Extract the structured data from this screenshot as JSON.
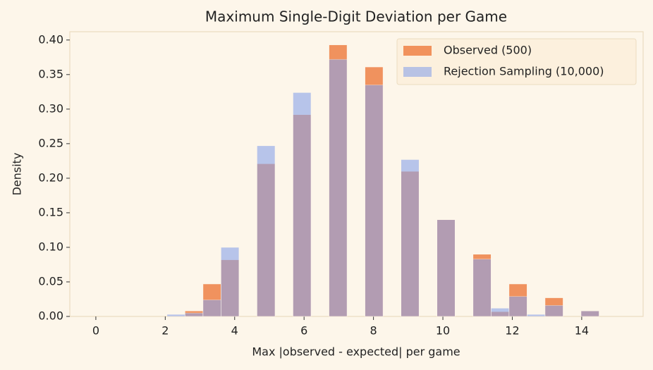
{
  "chart_data": {
    "type": "histogram",
    "title": "Maximum Single-Digit Deviation per Game",
    "x_label": "Max |observed - expected| per game",
    "y_label": "Density",
    "bins": [
      2.05,
      2.569,
      3.088,
      3.606,
      4.125,
      4.644,
      5.163,
      5.681,
      6.2,
      6.719,
      7.238,
      7.756,
      8.275,
      8.794,
      9.313,
      9.831,
      10.35,
      10.869,
      11.388,
      11.906,
      12.425,
      12.944,
      13.463,
      13.981,
      14.5
    ],
    "series": [
      {
        "name": "Observed (500)",
        "color": "#ee7a3c",
        "values": [
          0,
          0.008,
          0.047,
          0.082,
          0,
          0.221,
          0,
          0.292,
          0,
          0.393,
          0,
          0.361,
          0,
          0.21,
          0,
          0.14,
          0,
          0.09,
          0.007,
          0.047,
          0,
          0.027,
          0,
          0.008
        ]
      },
      {
        "name": "Rejection Sampling (10,000)",
        "color": "#8aa3ea",
        "values": [
          0.003,
          0.005,
          0.024,
          0.1,
          0,
          0.247,
          0,
          0.324,
          0,
          0.372,
          0,
          0.335,
          0,
          0.227,
          0,
          0.14,
          0,
          0.083,
          0.012,
          0.029,
          0.003,
          0.016,
          0,
          0.008
        ]
      }
    ],
    "xlim": [
      -0.75,
      15.77
    ],
    "ylim": [
      0,
      0.412
    ],
    "xticks": [
      0,
      2,
      4,
      6,
      8,
      10,
      12,
      14
    ],
    "yticks": [
      {
        "value": 0,
        "label": "0.00"
      },
      0.05,
      {
        "value": 0.1,
        "label": "0.10"
      },
      0.15,
      {
        "value": 0.2,
        "label": "0.20"
      },
      0.25,
      {
        "value": 0.3,
        "label": "0.30"
      },
      0.35,
      {
        "value": 0.4,
        "label": "0.40"
      }
    ],
    "legend": "upper right"
  }
}
